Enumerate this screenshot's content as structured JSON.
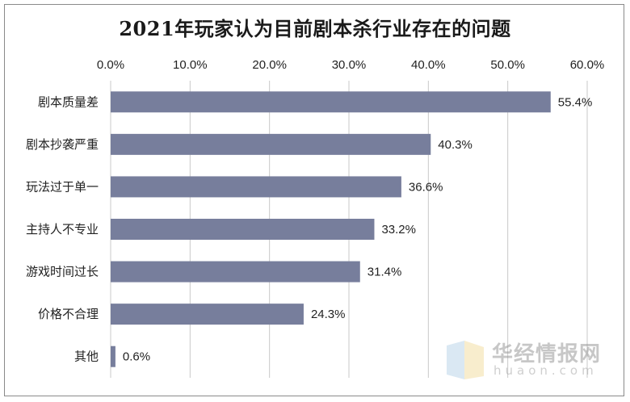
{
  "chart_data": {
    "type": "bar",
    "orientation": "horizontal",
    "title": "2021年玩家认为目前剧本杀行业存在的问题",
    "categories": [
      "剧本质量差",
      "剧本抄袭严重",
      "玩法过于单一",
      "主持人不专业",
      "游戏时间过长",
      "价格不合理",
      "其他"
    ],
    "values": [
      55.4,
      40.3,
      36.6,
      33.2,
      31.4,
      24.3,
      0.6
    ],
    "data_labels": [
      "55.4%",
      "40.3%",
      "36.6%",
      "33.2%",
      "31.4%",
      "24.3%",
      "0.6%"
    ],
    "xlim": [
      0,
      60
    ],
    "x_ticks": [
      0,
      10,
      20,
      30,
      40,
      50,
      60
    ],
    "x_tick_labels": [
      "0.0%",
      "10.0%",
      "20.0%",
      "30.0%",
      "40.0%",
      "50.0%",
      "60.0%"
    ],
    "x_axis_position": "top",
    "grid": true,
    "bar_color": "#777e9c",
    "gridline_color": "#c8c8c8"
  },
  "watermark": {
    "name": "华经情报网",
    "url": "huaon.com"
  }
}
